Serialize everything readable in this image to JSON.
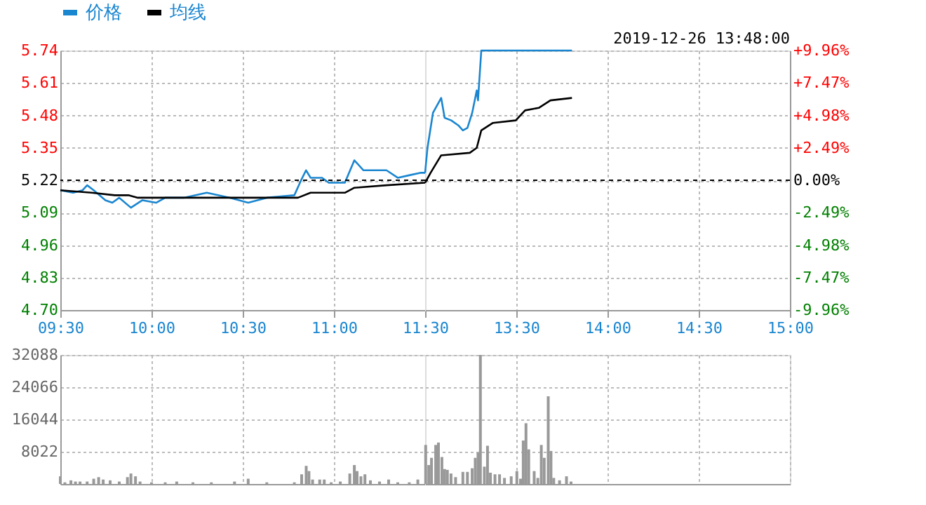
{
  "chart_data": [
    {
      "type": "line",
      "legend": "top",
      "grid": true,
      "line_style": "solid",
      "marker": "none",
      "xlim": [
        9.5,
        11.5
      ],
      "xticks": [
        {
          "value": 9.5,
          "label": "09:30"
        },
        {
          "value": 10,
          "label": "10:00"
        },
        {
          "value": 10.5,
          "label": "10:30"
        },
        {
          "value": 11,
          "label": "11:00"
        },
        {
          "value": 11.5,
          "label": "11:30"
        }
      ],
      "ylim": [
        4.7,
        5.74
      ],
      "yticks": [
        {
          "value": 4.7,
          "label": "4.70"
        },
        {
          "value": 4.83,
          "label": "4.83"
        },
        {
          "value": 4.96,
          "label": "4.96"
        },
        {
          "value": 5.09,
          "label": "5.09"
        },
        {
          "value": 5.22,
          "label": "5.22"
        },
        {
          "value": 5.35,
          "label": "5.35"
        },
        {
          "value": 5.48,
          "label": "5.48"
        },
        {
          "value": 5.61,
          "label": "5.61"
        },
        {
          "value": 5.74,
          "label": "5.74"
        }
      ],
      "ref_lines": [
        {
          "axis": "y",
          "value": 5.22,
          "color": "#000000",
          "line_style": "dashed"
        }
      ],
      "series": [
        {
          "name": "价格",
          "color": "#1a86d0",
          "x": [
            9.5,
            9.57,
            9.622,
            9.647,
            9.683,
            9.747,
            9.785,
            9.823,
            9.887,
            9.95,
            10.025,
            10.075,
            10.177,
            10.303,
            10.43,
            10.53,
            10.632,
            10.783,
            10.82,
            10.847,
            10.872,
            10.935,
            10.972,
            11.06,
            11.112,
            11.162,
            11.237,
            11.288,
            11.35,
            11.413,
            11.477,
            11.5
          ],
          "values": [
            5.18,
            5.17,
            5.18,
            5.2,
            5.18,
            5.14,
            5.13,
            5.15,
            5.11,
            5.14,
            5.13,
            5.15,
            5.15,
            5.17,
            5.15,
            5.13,
            5.15,
            5.16,
            5.22,
            5.26,
            5.23,
            5.23,
            5.21,
            5.21,
            5.3,
            5.26,
            5.26,
            5.26,
            5.23,
            5.24,
            5.25,
            5.25
          ]
        },
        {
          "name": "均线",
          "color": "#000000",
          "x": [
            9.5,
            9.672,
            9.798,
            9.873,
            9.925,
            10.803,
            10.872,
            11.06,
            11.112,
            11.288,
            11.5
          ],
          "values": [
            5.18,
            5.17,
            5.16,
            5.16,
            5.15,
            5.15,
            5.17,
            5.17,
            5.19,
            5.2,
            5.21
          ]
        }
      ]
    },
    {
      "type": "line",
      "annotations": [
        "2019-12-26 13:48:00"
      ],
      "grid": true,
      "tick_labels": "x",
      "line_style": "solid",
      "marker": "none",
      "xlim": [
        13,
        15
      ],
      "xticks": [
        {
          "value": 13.5,
          "label": "13:30"
        },
        {
          "value": 14,
          "label": "14:00"
        },
        {
          "value": 14.5,
          "label": "14:30"
        },
        {
          "value": 15,
          "label": "15:00"
        }
      ],
      "ylim": [
        4.7,
        5.74
      ],
      "yticks": [
        4.7,
        4.83,
        4.96,
        5.09,
        5.22,
        5.35,
        5.48,
        5.61,
        5.74
      ],
      "y2lim": [
        -9.96,
        9.96
      ],
      "y2ticks": [
        {
          "value": -9.96,
          "label": "-9.96%"
        },
        {
          "value": -7.47,
          "label": "-7.47%"
        },
        {
          "value": -4.98,
          "label": "-4.98%"
        },
        {
          "value": -2.49,
          "label": "-2.49%"
        },
        {
          "value": 0,
          "label": "0.00%"
        },
        {
          "value": 2.49,
          "label": "+2.49%"
        },
        {
          "value": 4.98,
          "label": "+4.98%"
        },
        {
          "value": 7.47,
          "label": "+7.47%"
        },
        {
          "value": 9.96,
          "label": "+9.96%"
        }
      ],
      "ref_lines": [
        {
          "axis": "y",
          "value": 5.22,
          "color": "#000000",
          "line_style": "dashed"
        }
      ],
      "series": [
        {
          "color": "#1a86d0",
          "x": [
            13,
            13.013,
            13.043,
            13.088,
            13.107,
            13.143,
            13.182,
            13.207,
            13.232,
            13.258,
            13.283,
            13.29,
            13.308,
            13.805
          ],
          "values": [
            5.25,
            5.35,
            5.49,
            5.55,
            5.47,
            5.46,
            5.44,
            5.42,
            5.43,
            5.49,
            5.58,
            5.54,
            5.74,
            5.74
          ]
        },
        {
          "color": "#000000",
          "x": [
            13,
            13.03,
            13.088,
            13.245,
            13.283,
            13.308,
            13.372,
            13.497,
            13.548,
            13.623,
            13.687,
            13.805
          ],
          "values": [
            5.21,
            5.25,
            5.32,
            5.33,
            5.35,
            5.42,
            5.45,
            5.46,
            5.5,
            5.51,
            5.54,
            5.55
          ]
        }
      ]
    },
    {
      "type": "bar",
      "grid": true,
      "tick_labels": "y",
      "color": "#999999",
      "xlim": [
        9.5,
        11.5
      ],
      "xticks": [
        9.5,
        10,
        10.5,
        11,
        11.5
      ],
      "ylim": [
        0,
        32088
      ],
      "yticks": [
        {
          "value": 0,
          "label": null
        },
        8022,
        16044,
        24066,
        32088
      ],
      "x": [
        9.5,
        9.525,
        9.558,
        9.583,
        9.608,
        9.647,
        9.683,
        9.71,
        9.735,
        9.773,
        9.823,
        9.868,
        9.887,
        9.912,
        9.937,
        10,
        10.075,
        10.138,
        10.227,
        10.328,
        10.455,
        10.53,
        10.632,
        10.783,
        10.823,
        10.848,
        10.863,
        10.883,
        10.922,
        10.947,
        10.985,
        11.035,
        11.087,
        11.112,
        11.127,
        11.148,
        11.17,
        11.2,
        11.25,
        11.3,
        11.35,
        11.413,
        11.46
      ],
      "values": [
        1900,
        400,
        900,
        600,
        600,
        600,
        1300,
        1700,
        1100,
        900,
        600,
        1700,
        2600,
        1900,
        600,
        400,
        400,
        600,
        400,
        400,
        600,
        1300,
        400,
        400,
        2400,
        4500,
        3200,
        1100,
        1100,
        1100,
        400,
        600,
        2600,
        4700,
        3200,
        1900,
        2400,
        900,
        600,
        1100,
        400,
        400,
        1100
      ]
    },
    {
      "type": "bar",
      "grid": true,
      "tick_labels": false,
      "color": "#999999",
      "xlim": [
        13,
        15
      ],
      "xticks": [
        13.5,
        14,
        14.5,
        15
      ],
      "ylim": [
        0,
        32088
      ],
      "yticks": [
        0,
        8022,
        16044,
        24066,
        32088
      ],
      "x": [
        13.003,
        13.02,
        13.035,
        13.058,
        13.073,
        13.092,
        13.107,
        13.122,
        13.142,
        13.167,
        13.207,
        13.232,
        13.258,
        13.275,
        13.29,
        13.303,
        13.325,
        13.342,
        13.358,
        13.383,
        13.408,
        13.435,
        13.472,
        13.503,
        13.523,
        13.538,
        13.553,
        13.568,
        13.598,
        13.618,
        13.637,
        13.653,
        13.675,
        13.69,
        13.705,
        13.737,
        13.775,
        13.8
      ],
      "values": [
        9700,
        4700,
        6500,
        9700,
        10300,
        6700,
        3700,
        3500,
        2600,
        1700,
        3000,
        3000,
        3900,
        6500,
        7800,
        32088,
        4300,
        9500,
        2800,
        2400,
        2400,
        1500,
        1900,
        3200,
        1300,
        10800,
        15100,
        8600,
        3200,
        1500,
        9700,
        6500,
        21800,
        8200,
        1500,
        900,
        1900,
        600
      ]
    }
  ]
}
